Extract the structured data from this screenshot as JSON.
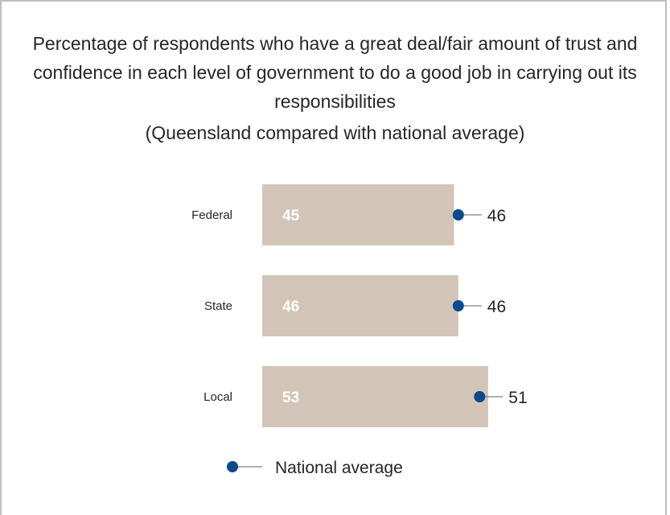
{
  "chart_data": {
    "type": "bar",
    "title": "Percentage of respondents who have a great deal/fair amount of trust and confidence in each level of government to do a good job in carrying out its responsibilities",
    "subtitle": "(Queensland compared with national average)",
    "categories": [
      "Federal",
      "State",
      "Local"
    ],
    "series": [
      {
        "values": [
          45,
          46,
          53
        ],
        "color": "#d2c5b7"
      },
      {
        "name": "National average",
        "values": [
          46,
          46,
          51
        ],
        "color": "#0b4a8b",
        "marker": "dot"
      }
    ],
    "orientation": "horizontal",
    "legend": "bottom-center"
  }
}
